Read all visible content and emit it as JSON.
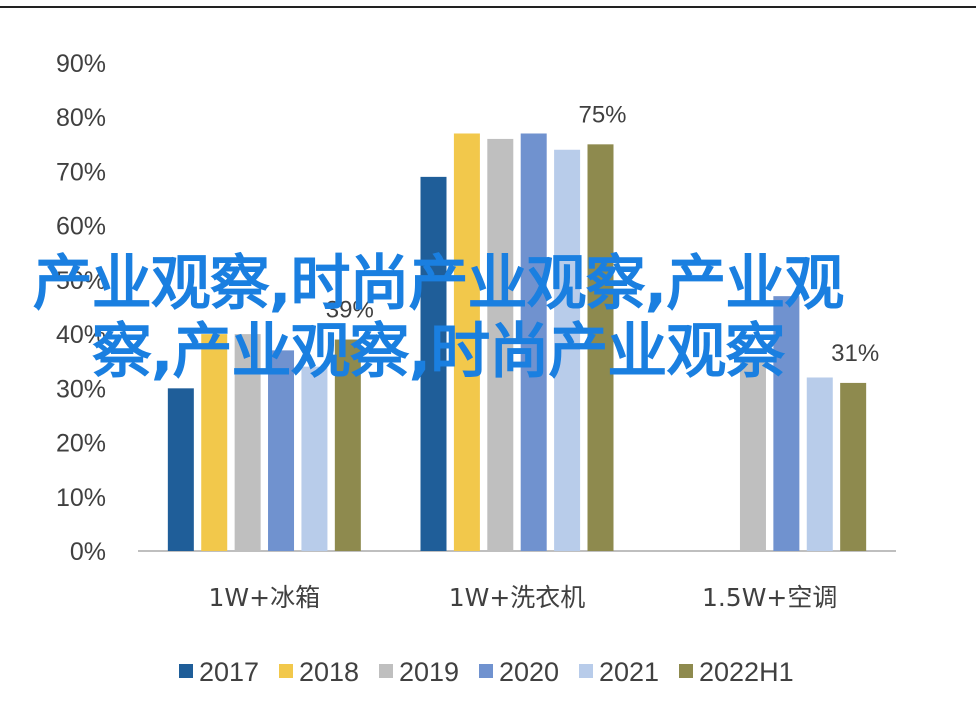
{
  "chart_data": {
    "type": "bar",
    "categories": [
      "1W+冰箱",
      "1W+洗衣机",
      "1.5W+空调"
    ],
    "series": [
      {
        "name": "2017",
        "color": "#1F5E99",
        "values": [
          30,
          69,
          null
        ]
      },
      {
        "name": "2018",
        "color": "#F2C84B",
        "values": [
          40,
          77,
          null
        ]
      },
      {
        "name": "2019",
        "color": "#BFBFBF",
        "values": [
          40,
          76,
          35
        ]
      },
      {
        "name": "2020",
        "color": "#7092CF",
        "values": [
          37,
          77,
          47
        ]
      },
      {
        "name": "2021",
        "color": "#B8CCEA",
        "values": [
          34,
          74,
          32
        ]
      },
      {
        "name": "2022H1",
        "color": "#8E8A4E",
        "values": [
          39,
          75,
          31
        ]
      }
    ],
    "data_labels": [
      {
        "category": 0,
        "series": 5,
        "text": "39%"
      },
      {
        "category": 1,
        "series": 5,
        "text": "75%"
      },
      {
        "category": 2,
        "series": 5,
        "text": "31%"
      }
    ],
    "yticks": [
      "0%",
      "10%",
      "20%",
      "30%",
      "40%",
      "50%",
      "60%",
      "70%",
      "80%",
      "90%"
    ],
    "ylim": [
      0,
      90
    ],
    "grid": false,
    "legend_position": "bottom"
  },
  "overlay_text": "产业观察,时尚产业观察,产业观察,产业观察,时尚产业观察"
}
